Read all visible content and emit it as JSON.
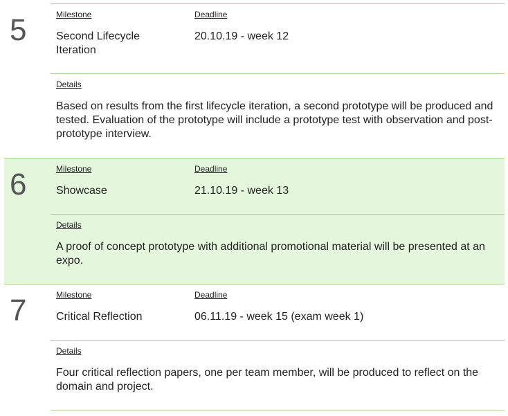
{
  "milestones": [
    {
      "number": "5",
      "milestone_label": "Milestone",
      "deadline_label": "Deadline",
      "details_label": "Details",
      "name": "Second Lifecycle Iteration",
      "deadline": "20.10.19 - week 12",
      "details": "Based on results from the first lifecycle iteration, a second prototype will be produced and tested. Evaluation of the prototype will include a prototype test with observation and post-prototype interview.",
      "highlighted": false
    },
    {
      "number": "6",
      "milestone_label": "Milestone",
      "deadline_label": "Deadline",
      "details_label": "Details",
      "name": "Showcase",
      "deadline": "21.10.19 - week 13",
      "details": "A proof of concept prototype with additional promotional material will be presented at an expo.",
      "highlighted": true
    },
    {
      "number": "7",
      "milestone_label": "Milestone",
      "deadline_label": "Deadline",
      "details_label": "Details",
      "name": "Critical Reflection",
      "deadline": "06.11.19 - week 15 (exam week 1)",
      "details": "Four critical reflection papers, one per team member, will be produced to reflect on the domain and project.",
      "highlighted": false
    }
  ],
  "colors": {
    "highlight_bg": "#e4f6dc",
    "divider": "#a8d08d",
    "number_color": "#555555"
  }
}
